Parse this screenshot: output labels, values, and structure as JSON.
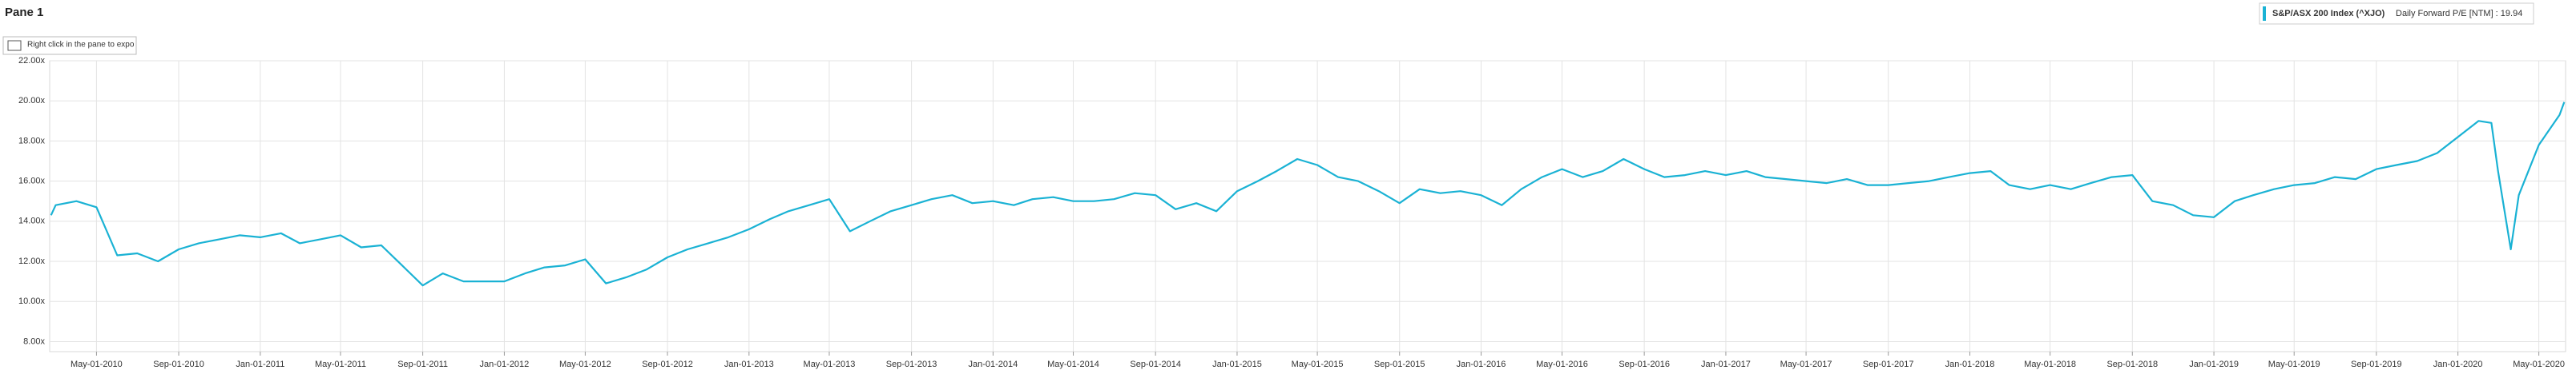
{
  "pane_title": "Pane 1",
  "hint": "Right click in the pane to export and for more options",
  "chart_data": {
    "type": "line",
    "legend_detail": "Daily Forward P/E [NTM] : 19.94",
    "x": [
      "2010-02-22",
      "2010-03-01",
      "2010-04-01",
      "2010-05-01",
      "2010-06-01",
      "2010-07-01",
      "2010-08-01",
      "2010-09-01",
      "2010-10-01",
      "2010-11-01",
      "2010-12-01",
      "2011-01-01",
      "2011-02-01",
      "2011-03-01",
      "2011-04-01",
      "2011-05-01",
      "2011-06-01",
      "2011-07-01",
      "2011-08-01",
      "2011-09-01",
      "2011-10-01",
      "2011-11-01",
      "2011-12-01",
      "2012-01-01",
      "2012-02-01",
      "2012-03-01",
      "2012-04-01",
      "2012-05-01",
      "2012-06-01",
      "2012-07-01",
      "2012-08-01",
      "2012-09-01",
      "2012-10-01",
      "2012-11-01",
      "2012-12-01",
      "2013-01-01",
      "2013-02-01",
      "2013-03-01",
      "2013-04-01",
      "2013-05-01",
      "2013-06-01",
      "2013-07-01",
      "2013-08-01",
      "2013-09-01",
      "2013-10-01",
      "2013-11-01",
      "2013-12-01",
      "2014-01-01",
      "2014-02-01",
      "2014-03-01",
      "2014-04-01",
      "2014-05-01",
      "2014-06-01",
      "2014-07-01",
      "2014-08-01",
      "2014-09-01",
      "2014-10-01",
      "2014-11-01",
      "2014-12-01",
      "2015-01-01",
      "2015-02-01",
      "2015-03-01",
      "2015-04-01",
      "2015-05-01",
      "2015-06-01",
      "2015-07-01",
      "2015-08-01",
      "2015-09-01",
      "2015-10-01",
      "2015-11-01",
      "2015-12-01",
      "2016-01-01",
      "2016-02-01",
      "2016-03-01",
      "2016-04-01",
      "2016-05-01",
      "2016-06-01",
      "2016-07-01",
      "2016-08-01",
      "2016-09-01",
      "2016-10-01",
      "2016-11-01",
      "2016-12-01",
      "2017-01-01",
      "2017-02-01",
      "2017-03-01",
      "2017-04-01",
      "2017-05-01",
      "2017-06-01",
      "2017-07-01",
      "2017-08-01",
      "2017-09-01",
      "2017-10-01",
      "2017-11-01",
      "2017-12-01",
      "2018-01-01",
      "2018-02-01",
      "2018-03-01",
      "2018-04-01",
      "2018-05-01",
      "2018-06-01",
      "2018-07-01",
      "2018-08-01",
      "2018-09-01",
      "2018-10-01",
      "2018-11-01",
      "2018-12-01",
      "2019-01-01",
      "2019-02-01",
      "2019-03-01",
      "2019-04-01",
      "2019-05-01",
      "2019-06-01",
      "2019-07-01",
      "2019-08-01",
      "2019-09-01",
      "2019-10-01",
      "2019-11-01",
      "2019-12-01",
      "2020-01-01",
      "2020-02-01",
      "2020-02-20",
      "2020-03-01",
      "2020-03-20",
      "2020-04-01",
      "2020-05-01",
      "2020-06-01",
      "2020-06-08"
    ],
    "series": [
      {
        "name": "S&P/ASX 200 Index (^XJO)",
        "color": "#1ab2d4",
        "values": [
          14.3,
          14.8,
          15.0,
          14.7,
          12.3,
          12.4,
          12.0,
          12.6,
          12.9,
          13.1,
          13.3,
          13.2,
          13.4,
          12.9,
          13.1,
          13.3,
          12.7,
          12.8,
          11.8,
          10.8,
          11.4,
          11.0,
          11.0,
          11.0,
          11.4,
          11.7,
          11.8,
          12.1,
          10.9,
          11.2,
          11.6,
          12.2,
          12.6,
          12.9,
          13.2,
          13.6,
          14.1,
          14.5,
          14.8,
          15.1,
          13.5,
          14.0,
          14.5,
          14.8,
          15.1,
          15.3,
          14.9,
          15.0,
          14.8,
          15.1,
          15.2,
          15.0,
          15.0,
          15.1,
          15.4,
          15.3,
          14.6,
          14.9,
          14.5,
          15.5,
          16.0,
          16.5,
          17.1,
          16.8,
          16.2,
          16.0,
          15.5,
          14.9,
          15.6,
          15.4,
          15.5,
          15.3,
          14.8,
          15.6,
          16.2,
          16.6,
          16.2,
          16.5,
          17.1,
          16.6,
          16.2,
          16.3,
          16.5,
          16.3,
          16.5,
          16.2,
          16.1,
          16.0,
          15.9,
          16.1,
          15.8,
          15.8,
          15.9,
          16.0,
          16.2,
          16.4,
          16.5,
          15.8,
          15.6,
          15.8,
          15.6,
          15.9,
          16.2,
          16.3,
          15.0,
          14.8,
          14.3,
          14.2,
          15.0,
          15.3,
          15.6,
          15.8,
          15.9,
          16.2,
          16.1,
          16.6,
          16.8,
          17.0,
          17.4,
          18.2,
          19.0,
          18.9,
          16.5,
          12.6,
          15.3,
          17.8,
          19.3,
          19.94
        ]
      }
    ],
    "xlim": [
      "2010-02-20",
      "2020-06-10"
    ],
    "xticks": [
      {
        "value": "2010-05-01",
        "label": "May-01-2010"
      },
      {
        "value": "2010-09-01",
        "label": "Sep-01-2010"
      },
      {
        "value": "2011-01-01",
        "label": "Jan-01-2011"
      },
      {
        "value": "2011-05-01",
        "label": "May-01-2011"
      },
      {
        "value": "2011-09-01",
        "label": "Sep-01-2011"
      },
      {
        "value": "2012-01-01",
        "label": "Jan-01-2012"
      },
      {
        "value": "2012-05-01",
        "label": "May-01-2012"
      },
      {
        "value": "2012-09-01",
        "label": "Sep-01-2012"
      },
      {
        "value": "2013-01-01",
        "label": "Jan-01-2013"
      },
      {
        "value": "2013-05-01",
        "label": "May-01-2013"
      },
      {
        "value": "2013-09-01",
        "label": "Sep-01-2013"
      },
      {
        "value": "2014-01-01",
        "label": "Jan-01-2014"
      },
      {
        "value": "2014-05-01",
        "label": "May-01-2014"
      },
      {
        "value": "2014-09-01",
        "label": "Sep-01-2014"
      },
      {
        "value": "2015-01-01",
        "label": "Jan-01-2015"
      },
      {
        "value": "2015-05-01",
        "label": "May-01-2015"
      },
      {
        "value": "2015-09-01",
        "label": "Sep-01-2015"
      },
      {
        "value": "2016-01-01",
        "label": "Jan-01-2016"
      },
      {
        "value": "2016-05-01",
        "label": "May-01-2016"
      },
      {
        "value": "2016-09-01",
        "label": "Sep-01-2016"
      },
      {
        "value": "2017-01-01",
        "label": "Jan-01-2017"
      },
      {
        "value": "2017-05-01",
        "label": "May-01-2017"
      },
      {
        "value": "2017-09-01",
        "label": "Sep-01-2017"
      },
      {
        "value": "2018-01-01",
        "label": "Jan-01-2018"
      },
      {
        "value": "2018-05-01",
        "label": "May-01-2018"
      },
      {
        "value": "2018-09-01",
        "label": "Sep-01-2018"
      },
      {
        "value": "2019-01-01",
        "label": "Jan-01-2019"
      },
      {
        "value": "2019-05-01",
        "label": "May-01-2019"
      },
      {
        "value": "2019-09-01",
        "label": "Sep-01-2019"
      },
      {
        "value": "2020-01-01",
        "label": "Jan-01-2020"
      },
      {
        "value": "2020-05-01",
        "label": "May-01-2020"
      }
    ],
    "ylim": [
      7.5,
      22
    ],
    "yticks": [
      {
        "value": 8,
        "label": "8.00x"
      },
      {
        "value": 10,
        "label": "10.00x"
      },
      {
        "value": 12,
        "label": "12.00x"
      },
      {
        "value": 14,
        "label": "14.00x"
      },
      {
        "value": 16,
        "label": "16.00x"
      },
      {
        "value": 18,
        "label": "18.00x"
      },
      {
        "value": 20,
        "label": "20.00x"
      },
      {
        "value": 22,
        "label": "22.00x"
      }
    ],
    "grid": true
  }
}
